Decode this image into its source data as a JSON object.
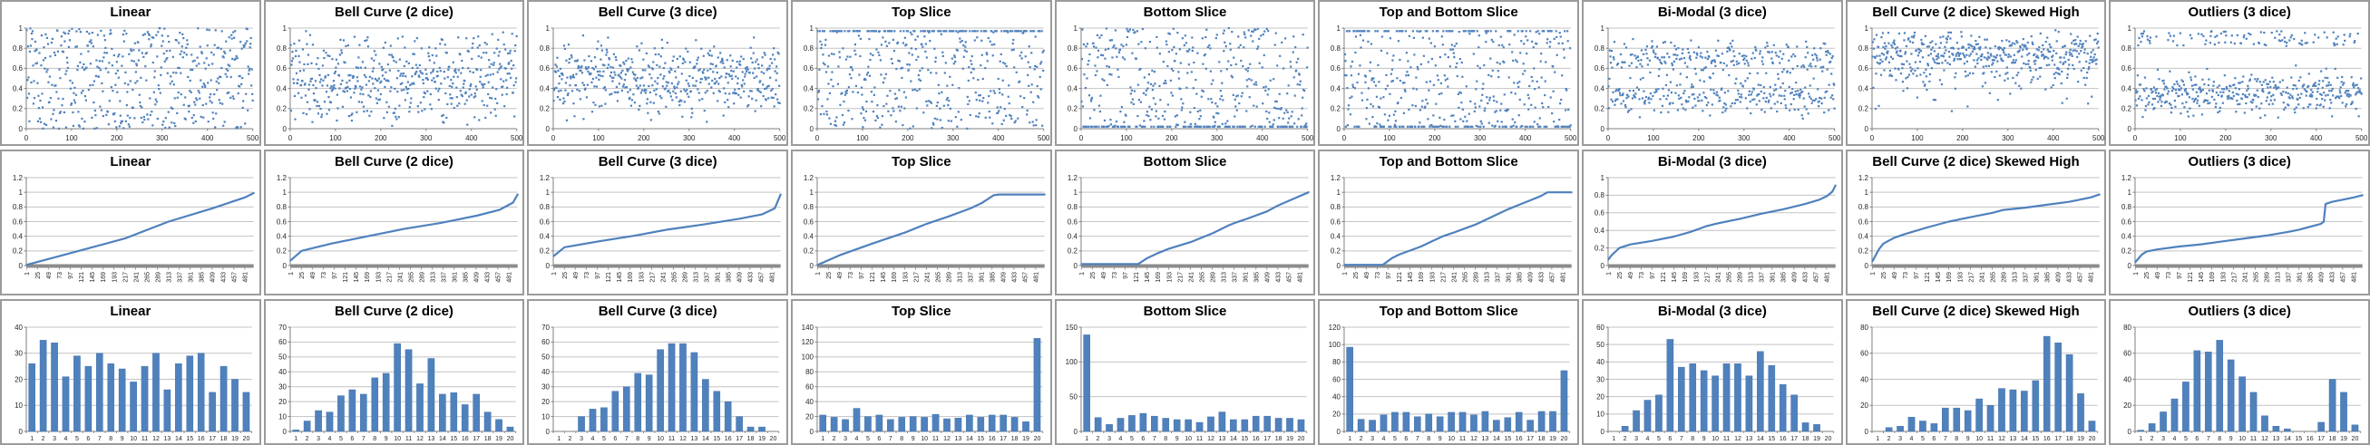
{
  "page": {
    "background": "#FFFFFF"
  },
  "colors": {
    "series": "#4F81BD",
    "bar_fill": "#4F81BD",
    "bar_edge": "#3E6DA5",
    "gridline": "#C3C3C3",
    "axis_line": "#7F7F7F",
    "thick_baseline": "#8C8C8C",
    "axis_text": "#262626",
    "title_text": "#000000",
    "chart_border": "#9B9B9B",
    "chart_background": "#FFFFFF"
  },
  "grid": {
    "columns": 9,
    "rows": 3,
    "row_kinds": [
      "scatter",
      "sorted-line",
      "histogram"
    ]
  },
  "column_titles": [
    "Linear",
    "Bell Curve (2 dice)",
    "Bell Curve (3 dice)",
    "Top Slice",
    "Bottom Slice",
    "Top and Bottom Slice",
    "Bi-Modal (3 dice)",
    "Bell Curve (2 dice) Skewed High",
    "Outliers (3 dice)"
  ],
  "scatter_defaults": {
    "n_points": 500,
    "x_ticks": [
      0,
      100,
      200,
      300,
      400,
      500
    ],
    "y_ticks": [
      0,
      0.2,
      0.4,
      0.6,
      0.8,
      1
    ],
    "x_max": 500,
    "y_max": 1
  },
  "line_defaults": {
    "n_categories": 500,
    "x_tick_labels": [
      1,
      25,
      49,
      73,
      97,
      121,
      145,
      169,
      193,
      217,
      241,
      265,
      289,
      313,
      337,
      361,
      385,
      409,
      433,
      457,
      481
    ]
  },
  "histogram_defaults": {
    "categories": [
      1,
      2,
      3,
      4,
      5,
      6,
      7,
      8,
      9,
      10,
      11,
      12,
      13,
      14,
      15,
      16,
      17,
      18,
      19,
      20
    ]
  },
  "chart_data": [
    {
      "type": "scatter",
      "title": "Linear",
      "distribution": "uniform",
      "x_ticks": [
        0,
        100,
        200,
        300,
        400,
        500
      ],
      "y_ticks": [
        0,
        0.2,
        0.4,
        0.6,
        0.8,
        1
      ]
    },
    {
      "type": "scatter",
      "title": "Bell Curve (2 dice)",
      "distribution": "dice2",
      "x_ticks": [
        0,
        100,
        200,
        300,
        400,
        500
      ],
      "y_ticks": [
        0,
        0.2,
        0.4,
        0.6,
        0.8,
        1
      ]
    },
    {
      "type": "scatter",
      "title": "Bell Curve (3 dice)",
      "distribution": "dice3",
      "x_ticks": [
        0,
        100,
        200,
        300,
        400,
        500
      ],
      "y_ticks": [
        0,
        0.2,
        0.4,
        0.6,
        0.8,
        1
      ]
    },
    {
      "type": "scatter",
      "title": "Top Slice",
      "distribution": "top-slice",
      "x_ticks": [
        0,
        100,
        200,
        300,
        400,
        500
      ],
      "y_ticks": [
        0,
        0.2,
        0.4,
        0.6,
        0.8,
        1
      ]
    },
    {
      "type": "scatter",
      "title": "Bottom Slice",
      "distribution": "bottom-slice",
      "x_ticks": [
        0,
        100,
        200,
        300,
        400,
        500
      ],
      "y_ticks": [
        0,
        0.2,
        0.4,
        0.6,
        0.8,
        1
      ]
    },
    {
      "type": "scatter",
      "title": "Top and Bottom Slice",
      "distribution": "top-bottom-slice",
      "x_ticks": [
        0,
        100,
        200,
        300,
        400,
        500
      ],
      "y_ticks": [
        0,
        0.2,
        0.4,
        0.6,
        0.8,
        1
      ]
    },
    {
      "type": "scatter",
      "title": "Bi-Modal (3 dice)",
      "distribution": "bimodal",
      "x_ticks": [
        0,
        100,
        200,
        300,
        400,
        500
      ],
      "y_ticks": [
        0,
        0.2,
        0.4,
        0.6,
        0.8,
        1
      ]
    },
    {
      "type": "scatter",
      "title": "Bell Curve (2 dice) Skewed High",
      "distribution": "skew-high",
      "x_ticks": [
        0,
        100,
        200,
        300,
        400,
        500
      ],
      "y_ticks": [
        0,
        0.2,
        0.4,
        0.6,
        0.8,
        1
      ]
    },
    {
      "type": "scatter",
      "title": "Outliers (3 dice)",
      "distribution": "outliers",
      "x_ticks": [
        0,
        100,
        200,
        300,
        400,
        500
      ],
      "y_ticks": [
        0,
        0.2,
        0.4,
        0.6,
        0.8,
        1
      ]
    },
    {
      "type": "line",
      "title": "Linear",
      "y_ticks": [
        0,
        0.2,
        0.4,
        0.6,
        0.8,
        1,
        1.2
      ],
      "anchors": [
        [
          1,
          0.01
        ],
        [
          97,
          0.17
        ],
        [
          217,
          0.37
        ],
        [
          313,
          0.6
        ],
        [
          409,
          0.78
        ],
        [
          481,
          0.93
        ],
        [
          500,
          0.99
        ]
      ]
    },
    {
      "type": "line",
      "title": "Bell Curve (2 dice)",
      "y_ticks": [
        0,
        0.2,
        0.4,
        0.6,
        0.8,
        1,
        1.2
      ],
      "anchors": [
        [
          1,
          0.07
        ],
        [
          25,
          0.2
        ],
        [
          90,
          0.3
        ],
        [
          170,
          0.4
        ],
        [
          250,
          0.5
        ],
        [
          330,
          0.58
        ],
        [
          410,
          0.68
        ],
        [
          460,
          0.76
        ],
        [
          490,
          0.86
        ],
        [
          500,
          0.97
        ]
      ]
    },
    {
      "type": "line",
      "title": "Bell Curve (3 dice)",
      "y_ticks": [
        0,
        0.2,
        0.4,
        0.6,
        0.8,
        1,
        1.2
      ],
      "anchors": [
        [
          1,
          0.13
        ],
        [
          25,
          0.25
        ],
        [
          100,
          0.33
        ],
        [
          180,
          0.41
        ],
        [
          250,
          0.49
        ],
        [
          330,
          0.56
        ],
        [
          410,
          0.64
        ],
        [
          460,
          0.7
        ],
        [
          487,
          0.78
        ],
        [
          500,
          0.97
        ]
      ]
    },
    {
      "type": "line",
      "title": "Top Slice",
      "y_ticks": [
        0,
        0.2,
        0.4,
        0.6,
        0.8,
        1,
        1.2
      ],
      "anchors": [
        [
          1,
          0.01
        ],
        [
          49,
          0.14
        ],
        [
          121,
          0.3
        ],
        [
          193,
          0.45
        ],
        [
          241,
          0.57
        ],
        [
          289,
          0.67
        ],
        [
          337,
          0.78
        ],
        [
          361,
          0.85
        ],
        [
          388,
          0.96
        ],
        [
          400,
          0.97
        ],
        [
          500,
          0.97
        ]
      ]
    },
    {
      "type": "line",
      "title": "Bottom Slice",
      "y_ticks": [
        0,
        0.2,
        0.4,
        0.6,
        0.8,
        1,
        1.2
      ],
      "anchors": [
        [
          1,
          0.02
        ],
        [
          125,
          0.02
        ],
        [
          145,
          0.1
        ],
        [
          169,
          0.17
        ],
        [
          193,
          0.23
        ],
        [
          241,
          0.32
        ],
        [
          289,
          0.44
        ],
        [
          325,
          0.55
        ],
        [
          337,
          0.58
        ],
        [
          361,
          0.63
        ],
        [
          409,
          0.74
        ],
        [
          433,
          0.82
        ],
        [
          481,
          0.95
        ],
        [
          500,
          1.0
        ]
      ]
    },
    {
      "type": "line",
      "title": "Top and Bottom Slice",
      "y_ticks": [
        0,
        0.2,
        0.4,
        0.6,
        0.8,
        1,
        1.2
      ],
      "anchors": [
        [
          1,
          0.01
        ],
        [
          85,
          0.01
        ],
        [
          105,
          0.1
        ],
        [
          121,
          0.15
        ],
        [
          169,
          0.26
        ],
        [
          193,
          0.33
        ],
        [
          217,
          0.4
        ],
        [
          241,
          0.45
        ],
        [
          289,
          0.56
        ],
        [
          313,
          0.63
        ],
        [
          337,
          0.7
        ],
        [
          361,
          0.77
        ],
        [
          385,
          0.83
        ],
        [
          409,
          0.89
        ],
        [
          433,
          0.95
        ],
        [
          447,
          1.0
        ],
        [
          500,
          1.0
        ]
      ]
    },
    {
      "type": "line",
      "title": "Bi-Modal (3 dice)",
      "y_ticks": [
        0,
        0.2,
        0.4,
        0.6,
        0.8,
        1
      ],
      "anchors": [
        [
          1,
          0.07
        ],
        [
          8,
          0.12
        ],
        [
          25,
          0.2
        ],
        [
          49,
          0.24
        ],
        [
          97,
          0.28
        ],
        [
          145,
          0.33
        ],
        [
          180,
          0.38
        ],
        [
          217,
          0.45
        ],
        [
          241,
          0.48
        ],
        [
          289,
          0.53
        ],
        [
          337,
          0.59
        ],
        [
          385,
          0.64
        ],
        [
          433,
          0.7
        ],
        [
          465,
          0.75
        ],
        [
          481,
          0.79
        ],
        [
          493,
          0.84
        ],
        [
          500,
          0.91
        ]
      ]
    },
    {
      "type": "line",
      "title": "Bell Curve (2 dice) Skewed High",
      "y_ticks": [
        0,
        0.2,
        0.4,
        0.6,
        0.8,
        1,
        1.2
      ],
      "anchors": [
        [
          1,
          0.06
        ],
        [
          15,
          0.22
        ],
        [
          25,
          0.3
        ],
        [
          49,
          0.38
        ],
        [
          73,
          0.43
        ],
        [
          121,
          0.52
        ],
        [
          169,
          0.6
        ],
        [
          217,
          0.66
        ],
        [
          265,
          0.72
        ],
        [
          289,
          0.76
        ],
        [
          337,
          0.79
        ],
        [
          385,
          0.83
        ],
        [
          433,
          0.87
        ],
        [
          481,
          0.93
        ],
        [
          500,
          0.97
        ]
      ]
    },
    {
      "type": "line",
      "title": "Outliers (3 dice)",
      "y_ticks": [
        0,
        0.2,
        0.4,
        0.6,
        0.8,
        1,
        1.2
      ],
      "anchors": [
        [
          1,
          0.05
        ],
        [
          15,
          0.15
        ],
        [
          25,
          0.19
        ],
        [
          49,
          0.22
        ],
        [
          97,
          0.26
        ],
        [
          145,
          0.29
        ],
        [
          193,
          0.33
        ],
        [
          241,
          0.37
        ],
        [
          289,
          0.41
        ],
        [
          337,
          0.46
        ],
        [
          361,
          0.49
        ],
        [
          385,
          0.53
        ],
        [
          409,
          0.57
        ],
        [
          415,
          0.6
        ],
        [
          419,
          0.84
        ],
        [
          433,
          0.87
        ],
        [
          457,
          0.9
        ],
        [
          481,
          0.93
        ],
        [
          500,
          0.96
        ]
      ]
    },
    {
      "type": "bar",
      "title": "Linear",
      "y_ticks": [
        0,
        10,
        20,
        30,
        40
      ],
      "values": [
        26,
        35,
        34,
        21,
        29,
        25,
        30,
        26,
        24,
        19,
        25,
        30,
        16,
        26,
        29,
        30,
        15,
        25,
        20,
        15
      ]
    },
    {
      "type": "bar",
      "title": "Bell Curve (2 dice)",
      "y_ticks": [
        0,
        10,
        20,
        30,
        40,
        50,
        60,
        70
      ],
      "values": [
        1,
        7,
        14,
        13,
        24,
        28,
        25,
        36,
        39,
        59,
        55,
        32,
        49,
        25,
        26,
        18,
        25,
        13,
        8,
        3
      ]
    },
    {
      "type": "bar",
      "title": "Bell Curve (3 dice)",
      "y_ticks": [
        0,
        10,
        20,
        30,
        40,
        50,
        60,
        70
      ],
      "values": [
        0,
        0,
        10,
        15,
        16,
        27,
        30,
        39,
        38,
        55,
        59,
        59,
        53,
        35,
        27,
        20,
        10,
        3,
        3,
        0
      ]
    },
    {
      "type": "bar",
      "title": "Top Slice",
      "y_ticks": [
        0,
        20,
        40,
        60,
        80,
        100,
        120,
        140
      ],
      "values": [
        22,
        19,
        16,
        31,
        20,
        22,
        16,
        19,
        20,
        19,
        23,
        17,
        18,
        22,
        19,
        22,
        22,
        19,
        13,
        125
      ]
    },
    {
      "type": "bar",
      "title": "Bottom Slice",
      "y_ticks": [
        0,
        50,
        100,
        150
      ],
      "values": [
        139,
        20,
        10,
        19,
        23,
        26,
        22,
        19,
        17,
        17,
        13,
        21,
        28,
        17,
        17,
        22,
        22,
        19,
        19,
        17
      ]
    },
    {
      "type": "bar",
      "title": "Top and Bottom Slice",
      "y_ticks": [
        0,
        20,
        40,
        60,
        80,
        100,
        120
      ],
      "values": [
        97,
        14,
        13,
        19,
        22,
        22,
        17,
        20,
        17,
        22,
        22,
        19,
        23,
        13,
        16,
        22,
        13,
        23,
        23,
        70
      ]
    },
    {
      "type": "bar",
      "title": "Bi-Modal (3 dice)",
      "y_ticks": [
        0,
        10,
        20,
        30,
        40,
        50,
        60
      ],
      "values": [
        0,
        3,
        12,
        18,
        21,
        53,
        37,
        39,
        35,
        32,
        39,
        39,
        32,
        46,
        38,
        27,
        21,
        5,
        4,
        0
      ]
    },
    {
      "type": "bar",
      "title": "Bell Curve (2 dice) Skewed High",
      "y_ticks": [
        0,
        20,
        40,
        60,
        80
      ],
      "values": [
        0,
        3,
        4,
        11,
        8,
        6,
        18,
        18,
        16,
        25,
        20,
        33,
        32,
        31,
        39,
        73,
        68,
        59,
        29,
        8
      ]
    },
    {
      "type": "bar",
      "title": "Outliers (3 dice)",
      "y_ticks": [
        0,
        20,
        40,
        60,
        80
      ],
      "values": [
        1,
        6,
        15,
        25,
        38,
        62,
        61,
        70,
        55,
        42,
        30,
        12,
        4,
        2,
        0,
        0,
        7,
        40,
        30,
        5
      ]
    }
  ]
}
